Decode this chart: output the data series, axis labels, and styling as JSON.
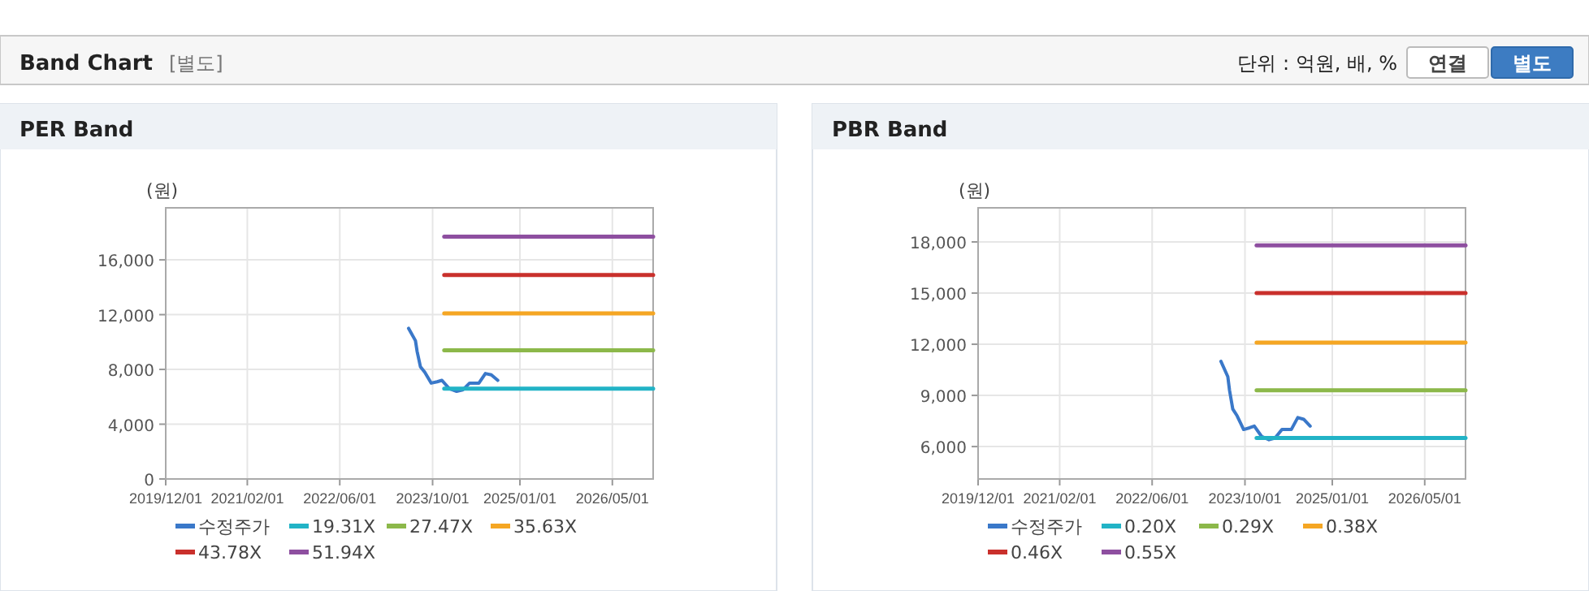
{
  "chart_data": [
    {
      "type": "other",
      "title": "Band Chart",
      "subtitle": "[별도]",
      "annotations": [
        "단위 : 억원, 배, %",
        "연결",
        "별도"
      ]
    },
    {
      "type": "line",
      "title": "PER Band",
      "ylabel": "(원)",
      "xlim": [
        "2019-12-01",
        "2026-12-01"
      ],
      "ylim": [
        0,
        19800
      ],
      "xticks": [
        {
          "value": "2019-12-01",
          "label": "2019/12/01"
        },
        {
          "value": "2021-02-01",
          "label": "2021/02/01"
        },
        {
          "value": "2022-06-01",
          "label": "2022/06/01"
        },
        {
          "value": "2023-10-01",
          "label": "2023/10/01"
        },
        {
          "value": "2025-01-01",
          "label": "2025/01/01"
        },
        {
          "value": "2026-05-01",
          "label": "2026/05/01"
        }
      ],
      "yticks": [
        0,
        {
          "value": 4000,
          "label": "4,000"
        },
        {
          "value": 8000,
          "label": "8,000"
        },
        {
          "value": 12000,
          "label": "12,000"
        },
        {
          "value": 16000,
          "label": "16,000"
        }
      ],
      "grid": true,
      "legend": "bottom",
      "marker": "none",
      "line_style": "solid",
      "series": [
        {
          "name": "수정주가",
          "color": "#3a78c9",
          "x": [
            "2023-05-28",
            "2023-07-03",
            "2023-07-12",
            "2023-07-29",
            "2023-08-21",
            "2023-09-24",
            "2023-10-25",
            "2023-11-19",
            "2023-12-27",
            "2024-02-04",
            "2024-03-07",
            "2024-04-12",
            "2024-05-31",
            "2024-07-04",
            "2024-08-04",
            "2024-09-07"
          ],
          "values": [
            11000,
            10100,
            9300,
            8200,
            7800,
            7000,
            7100,
            7200,
            6600,
            6400,
            6500,
            7000,
            7000,
            7700,
            7600,
            7200
          ]
        },
        {
          "name": "19.31X",
          "color": "#22b3c6",
          "x": [
            "2023-12-01",
            "2026-12-01"
          ],
          "values": [
            6600,
            6600
          ]
        },
        {
          "name": "27.47X",
          "color": "#8cb84a",
          "x": [
            "2023-12-01",
            "2026-12-01"
          ],
          "values": [
            9400,
            9400
          ]
        },
        {
          "name": "35.63X",
          "color": "#f5a623",
          "x": [
            "2023-12-01",
            "2026-12-01"
          ],
          "values": [
            12100,
            12100
          ]
        },
        {
          "name": "43.78X",
          "color": "#c9302c",
          "x": [
            "2023-12-01",
            "2026-12-01"
          ],
          "values": [
            14900,
            14900
          ]
        },
        {
          "name": "51.94X",
          "color": "#8e4fa0",
          "x": [
            "2023-12-01",
            "2026-12-01"
          ],
          "values": [
            17700,
            17700
          ]
        }
      ]
    },
    {
      "type": "line",
      "title": "PBR Band",
      "ylabel": "(원)",
      "xlim": [
        "2019-12-01",
        "2026-12-01"
      ],
      "ylim": [
        4100,
        20000
      ],
      "xticks": [
        {
          "value": "2019-12-01",
          "label": "2019/12/01"
        },
        {
          "value": "2021-02-01",
          "label": "2021/02/01"
        },
        {
          "value": "2022-06-01",
          "label": "2022/06/01"
        },
        {
          "value": "2023-10-01",
          "label": "2023/10/01"
        },
        {
          "value": "2025-01-01",
          "label": "2025/01/01"
        },
        {
          "value": "2026-05-01",
          "label": "2026/05/01"
        }
      ],
      "yticks": [
        {
          "value": 6000,
          "label": "6,000"
        },
        {
          "value": 9000,
          "label": "9,000"
        },
        {
          "value": 12000,
          "label": "12,000"
        },
        {
          "value": 15000,
          "label": "15,000"
        },
        {
          "value": 18000,
          "label": "18,000"
        }
      ],
      "grid": true,
      "legend": "bottom",
      "marker": "none",
      "line_style": "solid",
      "series": [
        {
          "name": "수정주가",
          "color": "#3a78c9",
          "x": [
            "2023-05-28",
            "2023-07-03",
            "2023-07-12",
            "2023-07-29",
            "2023-08-21",
            "2023-09-24",
            "2023-10-25",
            "2023-11-19",
            "2023-12-27",
            "2024-02-04",
            "2024-03-07",
            "2024-04-12",
            "2024-05-31",
            "2024-07-04",
            "2024-08-04",
            "2024-09-07"
          ],
          "values": [
            11000,
            10100,
            9300,
            8200,
            7800,
            7000,
            7100,
            7200,
            6600,
            6400,
            6500,
            7000,
            7000,
            7700,
            7600,
            7200
          ]
        },
        {
          "name": "0.20X",
          "color": "#22b3c6",
          "x": [
            "2023-12-01",
            "2026-12-01"
          ],
          "values": [
            6500,
            6500
          ]
        },
        {
          "name": "0.29X",
          "color": "#8cb84a",
          "x": [
            "2023-12-01",
            "2026-12-01"
          ],
          "values": [
            9300,
            9300
          ]
        },
        {
          "name": "0.38X",
          "color": "#f5a623",
          "x": [
            "2023-12-01",
            "2026-12-01"
          ],
          "values": [
            12100,
            12100
          ]
        },
        {
          "name": "0.46X",
          "color": "#c9302c",
          "x": [
            "2023-12-01",
            "2026-12-01"
          ],
          "values": [
            15000,
            15000
          ]
        },
        {
          "name": "0.55X",
          "color": "#8e4fa0",
          "x": [
            "2023-12-01",
            "2026-12-01"
          ],
          "values": [
            17800,
            17800
          ]
        }
      ]
    }
  ]
}
